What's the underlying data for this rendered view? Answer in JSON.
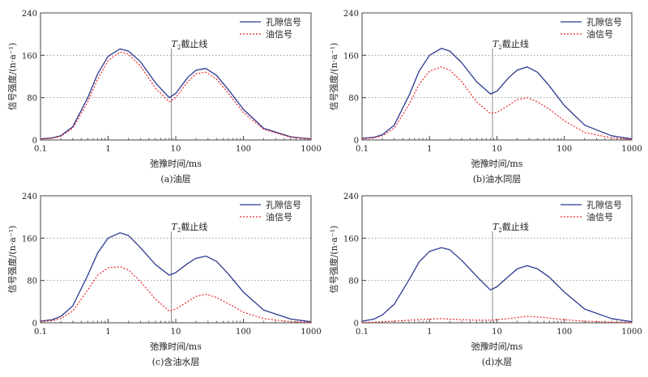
{
  "chart_data": [
    {
      "type": "line",
      "caption": "(a)油层",
      "xlabel": "弛豫时间/ms",
      "ylabel": "信号强度/(n·a⁻¹)",
      "x_scale": "log",
      "xlim": [
        0.1,
        1000
      ],
      "ylim": [
        0,
        240
      ],
      "x_ticks": [
        "0.1",
        "1",
        "10",
        "100",
        "1000"
      ],
      "y_ticks": [
        "0",
        "80",
        "160",
        "240"
      ],
      "grid": "horizontal dotted",
      "legend": "top-right",
      "cutoff": {
        "x": 8.6,
        "label_main": "T",
        "label_sub": "2",
        "label_rest": "截止线"
      },
      "x": [
        0.1,
        0.15,
        0.2,
        0.3,
        0.5,
        0.7,
        1,
        1.5,
        2,
        3,
        5,
        8,
        10,
        15,
        20,
        28,
        40,
        60,
        100,
        200,
        500,
        1000
      ],
      "series": [
        {
          "name": "孔隙信号",
          "color": "#2b3990",
          "style": "solid",
          "values": [
            2,
            4,
            8,
            25,
            80,
            125,
            158,
            172,
            168,
            148,
            108,
            80,
            88,
            118,
            132,
            135,
            122,
            95,
            58,
            22,
            6,
            2
          ]
        },
        {
          "name": "油信号",
          "color": "#e8262a",
          "style": "dotted",
          "values": [
            2,
            3,
            7,
            22,
            72,
            115,
            150,
            166,
            162,
            140,
            98,
            72,
            80,
            110,
            125,
            128,
            115,
            88,
            52,
            20,
            5,
            2
          ]
        }
      ]
    },
    {
      "type": "line",
      "caption": "(b)油水同层",
      "xlabel": "弛豫时间/ms",
      "ylabel": "信号强度/(n·a⁻¹)",
      "x_scale": "log",
      "xlim": [
        0.1,
        1000
      ],
      "ylim": [
        0,
        240
      ],
      "x_ticks": [
        "0.1",
        "1",
        "10",
        "100",
        "1000"
      ],
      "y_ticks": [
        "0",
        "80",
        "160",
        "240"
      ],
      "grid": "horizontal dotted",
      "legend": "top-right",
      "cutoff": {
        "x": 8.6,
        "label_main": "T",
        "label_sub": "2",
        "label_rest": "截止线"
      },
      "x": [
        0.1,
        0.15,
        0.2,
        0.3,
        0.5,
        0.7,
        1,
        1.5,
        2,
        3,
        5,
        8,
        10,
        15,
        20,
        28,
        40,
        60,
        100,
        200,
        500,
        1000
      ],
      "series": [
        {
          "name": "孔隙信号",
          "color": "#2b3990",
          "style": "solid",
          "values": [
            3,
            5,
            10,
            28,
            85,
            130,
            160,
            173,
            168,
            146,
            110,
            87,
            92,
            118,
            132,
            138,
            128,
            102,
            65,
            28,
            8,
            2
          ]
        },
        {
          "name": "油信号",
          "color": "#e8262a",
          "style": "dotted",
          "values": [
            2,
            4,
            8,
            22,
            68,
            105,
            130,
            138,
            132,
            110,
            72,
            50,
            52,
            66,
            76,
            80,
            72,
            58,
            36,
            14,
            4,
            1
          ]
        }
      ]
    },
    {
      "type": "line",
      "caption": "(c)含油水层",
      "xlabel": "弛豫时间/ms",
      "ylabel": "信号强度/(n·a⁻¹)",
      "x_scale": "log",
      "xlim": [
        0.1,
        1000
      ],
      "ylim": [
        0,
        240
      ],
      "x_ticks": [
        "0.1",
        "1",
        "10",
        "100",
        "1000"
      ],
      "y_ticks": [
        "0",
        "80",
        "160",
        "240"
      ],
      "grid": "horizontal dotted",
      "legend": "top-right",
      "cutoff": {
        "x": 8.6,
        "label_main": "T",
        "label_sub": "2",
        "label_rest": "截止线"
      },
      "x": [
        0.1,
        0.15,
        0.2,
        0.3,
        0.5,
        0.7,
        1,
        1.5,
        2,
        3,
        5,
        8,
        10,
        15,
        20,
        28,
        40,
        60,
        100,
        200,
        500,
        1000
      ],
      "series": [
        {
          "name": "孔隙信号",
          "color": "#2b3990",
          "style": "solid",
          "values": [
            3,
            6,
            12,
            32,
            90,
            132,
            160,
            170,
            165,
            142,
            110,
            90,
            95,
            112,
            122,
            126,
            116,
            92,
            58,
            24,
            7,
            2
          ]
        },
        {
          "name": "油信号",
          "color": "#e8262a",
          "style": "dotted",
          "values": [
            2,
            4,
            8,
            22,
            62,
            90,
            104,
            106,
            100,
            78,
            45,
            22,
            26,
            40,
            50,
            54,
            48,
            36,
            20,
            8,
            2,
            1
          ]
        }
      ]
    },
    {
      "type": "line",
      "caption": "(d)水层",
      "xlabel": "弛豫时间/ms",
      "ylabel": "信号强度/(n·a⁻¹)",
      "x_scale": "log",
      "xlim": [
        0.1,
        1000
      ],
      "ylim": [
        0,
        240
      ],
      "x_ticks": [
        "0.1",
        "1",
        "10",
        "100",
        "1000"
      ],
      "y_ticks": [
        "0",
        "80",
        "160",
        "240"
      ],
      "grid": "horizontal dotted",
      "legend": "top-right",
      "cutoff": {
        "x": 8.6,
        "label_main": "T",
        "label_sub": "2",
        "label_rest": "截止线"
      },
      "x": [
        0.1,
        0.15,
        0.2,
        0.3,
        0.5,
        0.7,
        1,
        1.5,
        2,
        3,
        5,
        8,
        10,
        15,
        20,
        28,
        40,
        60,
        100,
        200,
        500,
        1000
      ],
      "series": [
        {
          "name": "孔隙信号",
          "color": "#2b3990",
          "style": "solid",
          "values": [
            3,
            7,
            15,
            35,
            82,
            115,
            135,
            142,
            138,
            118,
            88,
            62,
            68,
            88,
            102,
            108,
            102,
            86,
            58,
            26,
            8,
            2
          ]
        },
        {
          "name": "油信号",
          "color": "#e8262a",
          "style": "dotted",
          "values": [
            1,
            1,
            2,
            3,
            5,
            6,
            7,
            8,
            7,
            6,
            5,
            5,
            6,
            8,
            10,
            12,
            11,
            9,
            6,
            3,
            1,
            0
          ]
        }
      ]
    }
  ]
}
